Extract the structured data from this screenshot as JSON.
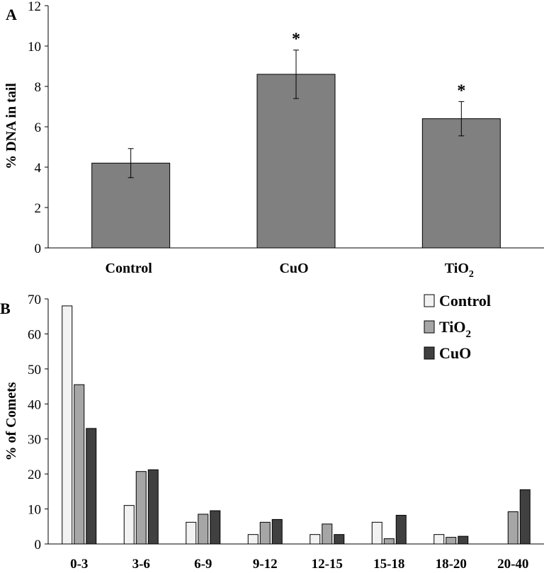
{
  "chart_data": [
    {
      "panel_label": "A",
      "type": "bar",
      "ylabel": "% DNA in tail",
      "ylim": [
        0,
        12
      ],
      "yticks": [
        0,
        2,
        4,
        6,
        8,
        10,
        12
      ],
      "categories": [
        {
          "base": "Control",
          "sub": ""
        },
        {
          "base": "CuO",
          "sub": ""
        },
        {
          "base": "TiO",
          "sub": "2"
        }
      ],
      "values": [
        4.2,
        8.6,
        6.4
      ],
      "error_bars": [
        0.72,
        1.2,
        0.85
      ],
      "significance": [
        "",
        "*",
        "*"
      ],
      "bar_color": "#808080"
    },
    {
      "panel_label": "B",
      "type": "bar",
      "ylabel": "% of Comets",
      "ylim": [
        0,
        70
      ],
      "yticks": [
        0,
        10,
        20,
        30,
        40,
        50,
        60,
        70
      ],
      "categories": [
        "0-3",
        "3-6",
        "6-9",
        "9-12",
        "12-15",
        "15-18",
        "18-20",
        "20-40"
      ],
      "series": [
        {
          "name": "Control",
          "sub": "",
          "color": "#f2f2f2",
          "values": [
            68,
            11,
            6.2,
            2.7,
            2.7,
            6.2,
            2.7,
            0
          ]
        },
        {
          "name": "TiO",
          "sub": "2",
          "color": "#a6a6a6",
          "values": [
            45.5,
            20.7,
            8.5,
            6.2,
            5.7,
            1.5,
            1.9,
            9.2
          ]
        },
        {
          "name": "CuO",
          "sub": "",
          "color": "#404040",
          "values": [
            33,
            21.2,
            9.5,
            7,
            2.7,
            8.2,
            2.2,
            15.5
          ]
        }
      ],
      "legend": "top-right"
    }
  ]
}
